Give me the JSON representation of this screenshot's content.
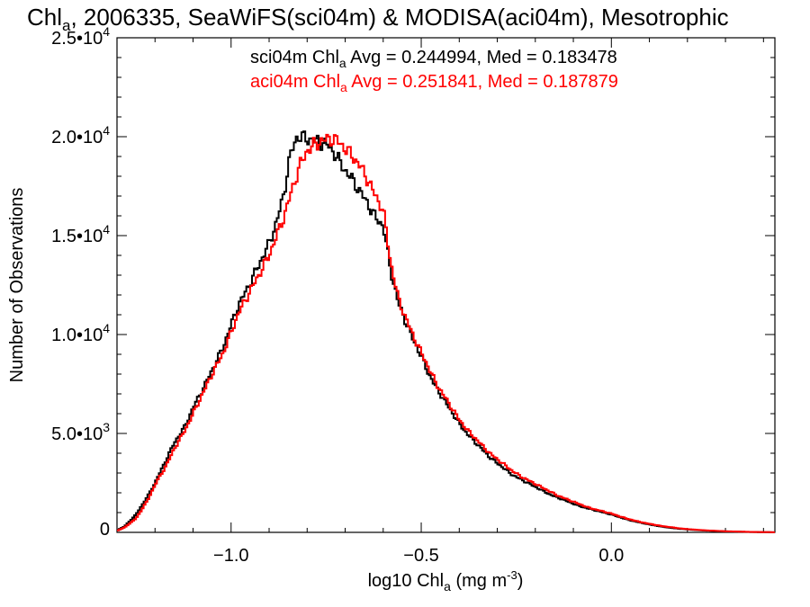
{
  "chart_data": {
    "type": "line",
    "title": {
      "pre": "Chl",
      "sub": "a",
      "post": ", 2006335, SeaWiFS(sci04m) & MODISA(aci04m), Mesotrophic"
    },
    "xlabel": {
      "pre": "log10 Chl",
      "sub": "a",
      "mid": " (mg m",
      "sup": "-3",
      "post": ")"
    },
    "ylabel": "Number of Observations",
    "xlim": [
      -1.3,
      0.43
    ],
    "ylim": [
      0,
      25000
    ],
    "x_ticks": [
      {
        "value": -1.0,
        "label": "−1.0"
      },
      {
        "value": -0.5,
        "label": "−0.5"
      },
      {
        "value": 0.0,
        "label": "0.0"
      }
    ],
    "y_ticks": [
      {
        "value": 0,
        "mant": "0",
        "exp": ""
      },
      {
        "value": 5000,
        "mant": "5.0•10",
        "exp": "3"
      },
      {
        "value": 10000,
        "mant": "1.0•10",
        "exp": "4"
      },
      {
        "value": 15000,
        "mant": "1.5•10",
        "exp": "4"
      },
      {
        "value": 20000,
        "mant": "2.0•10",
        "exp": "4"
      },
      {
        "value": 25000,
        "mant": "2.5•10",
        "exp": "4"
      }
    ],
    "grid": false,
    "series": [
      {
        "name": "sci04m",
        "color": "#000000",
        "label": {
          "pre": "sci04m Chl",
          "sub": "a",
          "post": " Avg = 0.244994, Med = 0.183478"
        },
        "points": [
          [
            -1.3,
            100
          ],
          [
            -1.28,
            300
          ],
          [
            -1.25,
            900
          ],
          [
            -1.22,
            1800
          ],
          [
            -1.2,
            2500
          ],
          [
            -1.17,
            3700
          ],
          [
            -1.15,
            4500
          ],
          [
            -1.12,
            5400
          ],
          [
            -1.1,
            6300
          ],
          [
            -1.07,
            7400
          ],
          [
            -1.05,
            8200
          ],
          [
            -1.02,
            9400
          ],
          [
            -1.0,
            10500
          ],
          [
            -0.98,
            11500
          ],
          [
            -0.95,
            12600
          ],
          [
            -0.93,
            13400
          ],
          [
            -0.9,
            14600
          ],
          [
            -0.88,
            15700
          ],
          [
            -0.86,
            17200
          ],
          [
            -0.85,
            18500
          ],
          [
            -0.84,
            19300
          ],
          [
            -0.83,
            19900
          ],
          [
            -0.82,
            20000
          ],
          [
            -0.8,
            19900
          ],
          [
            -0.78,
            19800
          ],
          [
            -0.76,
            19700
          ],
          [
            -0.74,
            19500
          ],
          [
            -0.72,
            18900
          ],
          [
            -0.7,
            18300
          ],
          [
            -0.68,
            17800
          ],
          [
            -0.66,
            17200
          ],
          [
            -0.64,
            16600
          ],
          [
            -0.62,
            15900
          ],
          [
            -0.6,
            15500
          ],
          [
            -0.58,
            13200
          ],
          [
            -0.56,
            11600
          ],
          [
            -0.54,
            10600
          ],
          [
            -0.52,
            9700
          ],
          [
            -0.5,
            8900
          ],
          [
            -0.48,
            8000
          ],
          [
            -0.46,
            7300
          ],
          [
            -0.44,
            6700
          ],
          [
            -0.42,
            6100
          ],
          [
            -0.4,
            5500
          ],
          [
            -0.38,
            5000
          ],
          [
            -0.36,
            4600
          ],
          [
            -0.34,
            4200
          ],
          [
            -0.32,
            3800
          ],
          [
            -0.3,
            3500
          ],
          [
            -0.28,
            3200
          ],
          [
            -0.26,
            2900
          ],
          [
            -0.24,
            2700
          ],
          [
            -0.22,
            2500
          ],
          [
            -0.2,
            2300
          ],
          [
            -0.18,
            2100
          ],
          [
            -0.16,
            1900
          ],
          [
            -0.14,
            1750
          ],
          [
            -0.12,
            1600
          ],
          [
            -0.1,
            1450
          ],
          [
            -0.08,
            1300
          ],
          [
            -0.06,
            1200
          ],
          [
            -0.04,
            1100
          ],
          [
            -0.02,
            1000
          ],
          [
            0.0,
            900
          ],
          [
            0.02,
            780
          ],
          [
            0.04,
            660
          ],
          [
            0.06,
            560
          ],
          [
            0.08,
            480
          ],
          [
            0.1,
            400
          ],
          [
            0.12,
            330
          ],
          [
            0.14,
            270
          ],
          [
            0.16,
            220
          ],
          [
            0.18,
            180
          ],
          [
            0.2,
            150
          ],
          [
            0.23,
            110
          ],
          [
            0.26,
            80
          ],
          [
            0.3,
            50
          ],
          [
            0.34,
            30
          ],
          [
            0.38,
            15
          ],
          [
            0.43,
            5
          ]
        ]
      },
      {
        "name": "aci04m",
        "color": "#ff0000",
        "label": {
          "pre": "aci04m Chl",
          "sub": "a",
          "post": " Avg = 0.251841, Med = 0.187879"
        },
        "points": [
          [
            -1.3,
            80
          ],
          [
            -1.28,
            250
          ],
          [
            -1.25,
            700
          ],
          [
            -1.22,
            1600
          ],
          [
            -1.2,
            2400
          ],
          [
            -1.17,
            3400
          ],
          [
            -1.15,
            4200
          ],
          [
            -1.12,
            5200
          ],
          [
            -1.1,
            6000
          ],
          [
            -1.07,
            7200
          ],
          [
            -1.05,
            8000
          ],
          [
            -1.02,
            9100
          ],
          [
            -1.0,
            10100
          ],
          [
            -0.98,
            11100
          ],
          [
            -0.95,
            12200
          ],
          [
            -0.93,
            12900
          ],
          [
            -0.9,
            14000
          ],
          [
            -0.88,
            15000
          ],
          [
            -0.86,
            16000
          ],
          [
            -0.84,
            17300
          ],
          [
            -0.82,
            18500
          ],
          [
            -0.8,
            19300
          ],
          [
            -0.78,
            19600
          ],
          [
            -0.76,
            19800
          ],
          [
            -0.74,
            19900
          ],
          [
            -0.72,
            19800
          ],
          [
            -0.7,
            19400
          ],
          [
            -0.68,
            19000
          ],
          [
            -0.66,
            18500
          ],
          [
            -0.64,
            17800
          ],
          [
            -0.62,
            17000
          ],
          [
            -0.6,
            16300
          ],
          [
            -0.58,
            13600
          ],
          [
            -0.56,
            11800
          ],
          [
            -0.54,
            10800
          ],
          [
            -0.52,
            9900
          ],
          [
            -0.5,
            9100
          ],
          [
            -0.48,
            8300
          ],
          [
            -0.46,
            7500
          ],
          [
            -0.44,
            6900
          ],
          [
            -0.42,
            6300
          ],
          [
            -0.4,
            5700
          ],
          [
            -0.38,
            5200
          ],
          [
            -0.36,
            4800
          ],
          [
            -0.34,
            4400
          ],
          [
            -0.32,
            4000
          ],
          [
            -0.3,
            3700
          ],
          [
            -0.28,
            3400
          ],
          [
            -0.26,
            3100
          ],
          [
            -0.24,
            2850
          ],
          [
            -0.22,
            2650
          ],
          [
            -0.2,
            2450
          ],
          [
            -0.18,
            2250
          ],
          [
            -0.16,
            2050
          ],
          [
            -0.14,
            1850
          ],
          [
            -0.12,
            1700
          ],
          [
            -0.1,
            1550
          ],
          [
            -0.08,
            1400
          ],
          [
            -0.06,
            1250
          ],
          [
            -0.04,
            1150
          ],
          [
            -0.02,
            1050
          ],
          [
            0.0,
            950
          ],
          [
            0.02,
            820
          ],
          [
            0.04,
            700
          ],
          [
            0.06,
            600
          ],
          [
            0.08,
            510
          ],
          [
            0.1,
            430
          ],
          [
            0.12,
            360
          ],
          [
            0.14,
            300
          ],
          [
            0.16,
            250
          ],
          [
            0.18,
            200
          ],
          [
            0.2,
            165
          ],
          [
            0.23,
            120
          ],
          [
            0.26,
            90
          ],
          [
            0.3,
            55
          ],
          [
            0.34,
            35
          ],
          [
            0.38,
            18
          ],
          [
            0.43,
            6
          ]
        ]
      }
    ]
  }
}
